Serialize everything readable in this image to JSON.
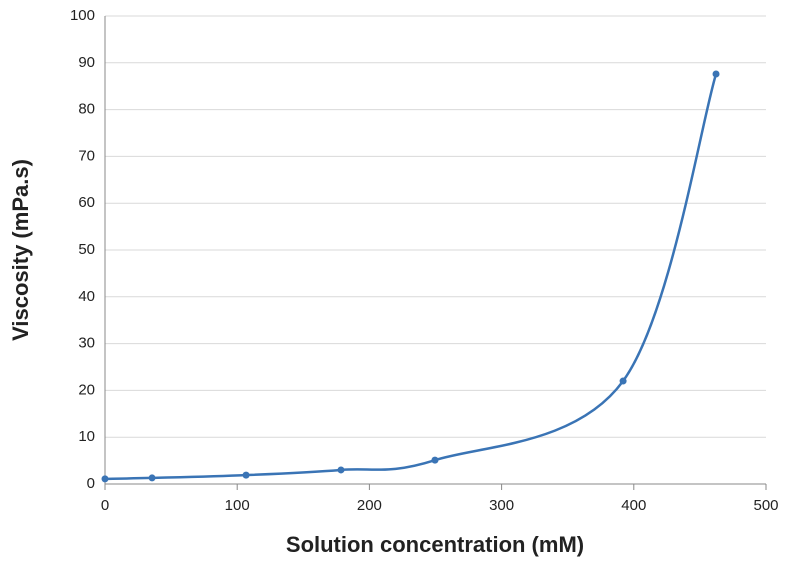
{
  "chart_data": {
    "type": "line",
    "x_label": "Solution concentration (mM)",
    "y_label": "Viscosity (mPa.s)",
    "x": [
      0,
      35.6,
      106.7,
      178.5,
      249.6,
      391.9,
      462.2
    ],
    "series": [
      {
        "color": "#3a74b5",
        "values": [
          1.1,
          1.3,
          1.9,
          3.0,
          5.1,
          22.0,
          87.6
        ]
      }
    ],
    "smooth": true,
    "xlim": [
      0,
      500
    ],
    "xticks": [
      0,
      100,
      200,
      300,
      400,
      500
    ],
    "ylim": [
      0,
      100
    ],
    "yticks": [
      0,
      10,
      20,
      30,
      40,
      50,
      60,
      70,
      80,
      90,
      100
    ],
    "grid": true
  }
}
